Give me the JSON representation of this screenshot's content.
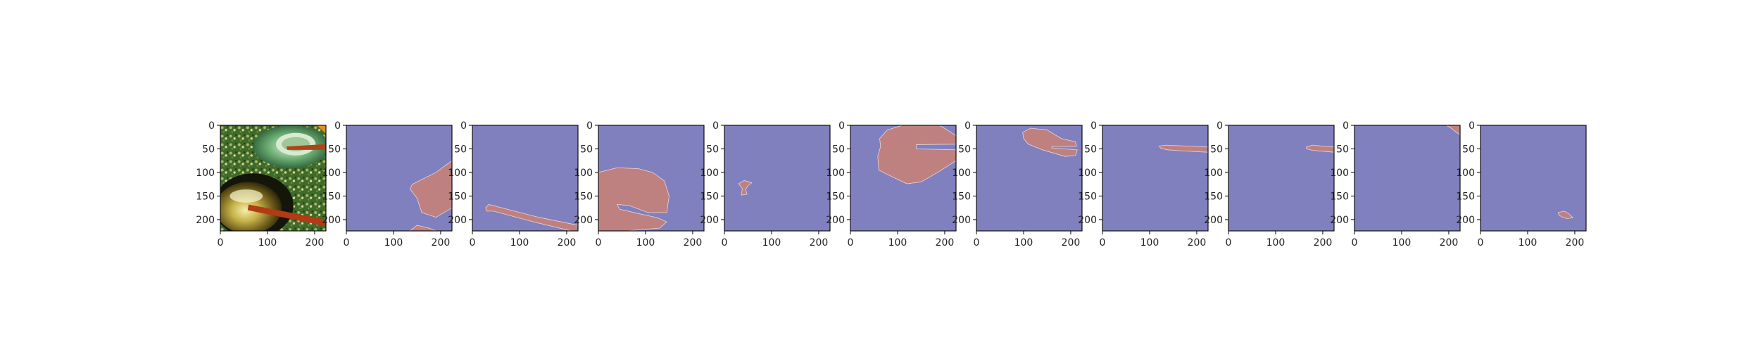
{
  "figure": {
    "background": "#ffffff",
    "panel_count": 11
  },
  "axes": {
    "x_ticks": [
      "0",
      "100",
      "200"
    ],
    "x_tick_values": [
      0,
      100,
      200
    ],
    "y_ticks": [
      "0",
      "50",
      "100",
      "150",
      "200"
    ],
    "y_tick_values": [
      0,
      50,
      100,
      150,
      200
    ],
    "xlim": [
      0,
      224
    ],
    "ylim": [
      224,
      0
    ]
  },
  "colors": {
    "background_class": "#8080bf",
    "foreground_class": "#bf8080",
    "edge": "#e8d6d6",
    "axis": "#000000",
    "tick_text": "#222222"
  },
  "panels": [
    {
      "kind": "photo",
      "subject": "green fish tank scene with a dark bowl and red sticks"
    },
    {
      "kind": "mask"
    },
    {
      "kind": "mask"
    },
    {
      "kind": "mask"
    },
    {
      "kind": "mask"
    },
    {
      "kind": "mask"
    },
    {
      "kind": "mask"
    },
    {
      "kind": "mask"
    },
    {
      "kind": "mask"
    },
    {
      "kind": "mask"
    },
    {
      "kind": "mask"
    }
  ]
}
